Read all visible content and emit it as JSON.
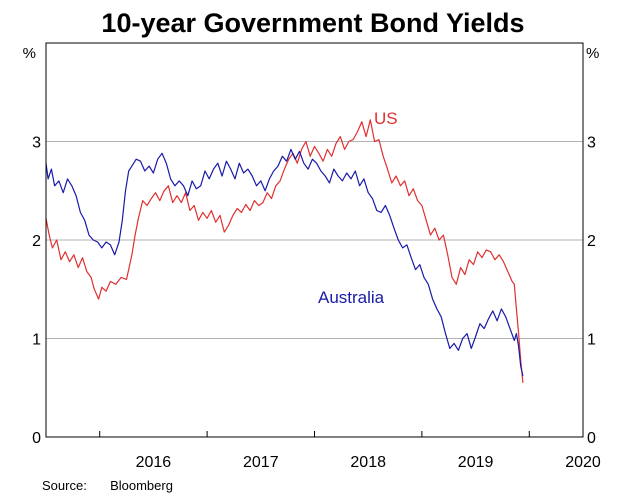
{
  "chart_data": {
    "type": "line",
    "title": "10-year Government Bond Yields",
    "ylabel_left": "%",
    "ylabel_right": "%",
    "ylim": [
      0,
      4
    ],
    "yticks": [
      0,
      1,
      2,
      3
    ],
    "xlim": [
      2015.5,
      2020.5
    ],
    "xticks": [
      "2016",
      "2017",
      "2018",
      "2019",
      "2020"
    ],
    "year_boundaries": [
      2016,
      2017,
      2018,
      2019,
      2020
    ],
    "grid": true,
    "colors": {
      "US": "#e03030",
      "Australia": "#1a1aa8",
      "grid": "#b3b3b3"
    },
    "series": [
      {
        "name": "US",
        "label": "US",
        "points": [
          [
            2015.5,
            2.22
          ],
          [
            2015.53,
            2.05
          ],
          [
            2015.56,
            1.92
          ],
          [
            2015.6,
            2.0
          ],
          [
            2015.64,
            1.8
          ],
          [
            2015.68,
            1.88
          ],
          [
            2015.72,
            1.78
          ],
          [
            2015.76,
            1.85
          ],
          [
            2015.8,
            1.72
          ],
          [
            2015.84,
            1.82
          ],
          [
            2015.88,
            1.68
          ],
          [
            2015.92,
            1.62
          ],
          [
            2015.95,
            1.5
          ],
          [
            2015.97,
            1.45
          ],
          [
            2015.99,
            1.4
          ],
          [
            2016.02,
            1.52
          ],
          [
            2016.06,
            1.48
          ],
          [
            2016.1,
            1.58
          ],
          [
            2016.15,
            1.55
          ],
          [
            2016.2,
            1.62
          ],
          [
            2016.25,
            1.6
          ],
          [
            2016.3,
            1.85
          ],
          [
            2016.33,
            2.05
          ],
          [
            2016.36,
            2.22
          ],
          [
            2016.4,
            2.4
          ],
          [
            2016.44,
            2.35
          ],
          [
            2016.48,
            2.42
          ],
          [
            2016.52,
            2.48
          ],
          [
            2016.56,
            2.4
          ],
          [
            2016.6,
            2.5
          ],
          [
            2016.64,
            2.55
          ],
          [
            2016.68,
            2.38
          ],
          [
            2016.72,
            2.45
          ],
          [
            2016.76,
            2.38
          ],
          [
            2016.8,
            2.48
          ],
          [
            2016.84,
            2.3
          ],
          [
            2016.88,
            2.35
          ],
          [
            2016.92,
            2.2
          ],
          [
            2016.96,
            2.28
          ],
          [
            2017.0,
            2.22
          ],
          [
            2017.04,
            2.3
          ],
          [
            2017.08,
            2.18
          ],
          [
            2017.12,
            2.25
          ],
          [
            2017.16,
            2.08
          ],
          [
            2017.2,
            2.15
          ],
          [
            2017.24,
            2.25
          ],
          [
            2017.28,
            2.32
          ],
          [
            2017.32,
            2.28
          ],
          [
            2017.36,
            2.36
          ],
          [
            2017.4,
            2.3
          ],
          [
            2017.44,
            2.4
          ],
          [
            2017.48,
            2.35
          ],
          [
            2017.52,
            2.38
          ],
          [
            2017.56,
            2.48
          ],
          [
            2017.6,
            2.42
          ],
          [
            2017.64,
            2.55
          ],
          [
            2017.68,
            2.6
          ],
          [
            2017.72,
            2.72
          ],
          [
            2017.76,
            2.82
          ],
          [
            2017.8,
            2.88
          ],
          [
            2017.84,
            2.78
          ],
          [
            2017.88,
            2.92
          ],
          [
            2017.92,
            3.0
          ],
          [
            2017.96,
            2.85
          ],
          [
            2018.0,
            2.95
          ],
          [
            2018.04,
            2.88
          ],
          [
            2018.08,
            2.8
          ],
          [
            2018.12,
            2.92
          ],
          [
            2018.16,
            2.85
          ],
          [
            2018.2,
            2.98
          ],
          [
            2018.24,
            3.05
          ],
          [
            2018.28,
            2.92
          ],
          [
            2018.32,
            3.0
          ],
          [
            2018.36,
            3.02
          ],
          [
            2018.4,
            3.1
          ],
          [
            2018.44,
            3.2
          ],
          [
            2018.48,
            3.05
          ],
          [
            2018.52,
            3.22
          ],
          [
            2018.56,
            3.0
          ],
          [
            2018.6,
            3.02
          ],
          [
            2018.64,
            2.85
          ],
          [
            2018.68,
            2.72
          ],
          [
            2018.72,
            2.58
          ],
          [
            2018.76,
            2.65
          ],
          [
            2018.8,
            2.55
          ],
          [
            2018.84,
            2.6
          ],
          [
            2018.88,
            2.45
          ],
          [
            2018.92,
            2.52
          ],
          [
            2018.96,
            2.4
          ],
          [
            2019.0,
            2.35
          ],
          [
            2019.04,
            2.2
          ],
          [
            2019.08,
            2.05
          ],
          [
            2019.12,
            2.12
          ],
          [
            2019.16,
            2.0
          ],
          [
            2019.2,
            2.05
          ],
          [
            2019.24,
            1.85
          ],
          [
            2019.28,
            1.62
          ],
          [
            2019.32,
            1.55
          ],
          [
            2019.36,
            1.72
          ],
          [
            2019.4,
            1.65
          ],
          [
            2019.44,
            1.8
          ],
          [
            2019.48,
            1.75
          ],
          [
            2019.52,
            1.88
          ],
          [
            2019.56,
            1.82
          ],
          [
            2019.6,
            1.9
          ],
          [
            2019.64,
            1.88
          ],
          [
            2019.68,
            1.8
          ],
          [
            2019.72,
            1.85
          ],
          [
            2019.76,
            1.78
          ],
          [
            2019.8,
            1.68
          ],
          [
            2019.84,
            1.58
          ],
          [
            2019.86,
            1.55
          ],
          [
            2019.88,
            1.3
          ],
          [
            2019.9,
            1.05
          ],
          [
            2019.92,
            0.78
          ],
          [
            2019.94,
            0.55
          ]
        ]
      },
      {
        "name": "Australia",
        "label": "Australia",
        "points": [
          [
            2015.5,
            2.78
          ],
          [
            2015.52,
            2.62
          ],
          [
            2015.55,
            2.72
          ],
          [
            2015.58,
            2.55
          ],
          [
            2015.62,
            2.6
          ],
          [
            2015.66,
            2.48
          ],
          [
            2015.7,
            2.62
          ],
          [
            2015.74,
            2.55
          ],
          [
            2015.78,
            2.45
          ],
          [
            2015.82,
            2.28
          ],
          [
            2015.86,
            2.2
          ],
          [
            2015.9,
            2.05
          ],
          [
            2015.94,
            2.0
          ],
          [
            2015.98,
            1.98
          ],
          [
            2016.02,
            1.92
          ],
          [
            2016.06,
            1.98
          ],
          [
            2016.1,
            1.95
          ],
          [
            2016.14,
            1.85
          ],
          [
            2016.18,
            1.98
          ],
          [
            2016.21,
            2.2
          ],
          [
            2016.24,
            2.5
          ],
          [
            2016.27,
            2.7
          ],
          [
            2016.3,
            2.75
          ],
          [
            2016.34,
            2.82
          ],
          [
            2016.38,
            2.8
          ],
          [
            2016.42,
            2.7
          ],
          [
            2016.46,
            2.75
          ],
          [
            2016.5,
            2.68
          ],
          [
            2016.54,
            2.82
          ],
          [
            2016.58,
            2.88
          ],
          [
            2016.62,
            2.78
          ],
          [
            2016.66,
            2.62
          ],
          [
            2016.7,
            2.55
          ],
          [
            2016.74,
            2.6
          ],
          [
            2016.78,
            2.55
          ],
          [
            2016.82,
            2.45
          ],
          [
            2016.86,
            2.6
          ],
          [
            2016.9,
            2.52
          ],
          [
            2016.94,
            2.55
          ],
          [
            2016.98,
            2.7
          ],
          [
            2017.02,
            2.62
          ],
          [
            2017.06,
            2.72
          ],
          [
            2017.1,
            2.78
          ],
          [
            2017.14,
            2.65
          ],
          [
            2017.18,
            2.8
          ],
          [
            2017.22,
            2.72
          ],
          [
            2017.26,
            2.62
          ],
          [
            2017.3,
            2.78
          ],
          [
            2017.34,
            2.68
          ],
          [
            2017.38,
            2.72
          ],
          [
            2017.42,
            2.65
          ],
          [
            2017.46,
            2.55
          ],
          [
            2017.5,
            2.6
          ],
          [
            2017.54,
            2.5
          ],
          [
            2017.58,
            2.62
          ],
          [
            2017.62,
            2.7
          ],
          [
            2017.66,
            2.75
          ],
          [
            2017.7,
            2.85
          ],
          [
            2017.74,
            2.8
          ],
          [
            2017.78,
            2.92
          ],
          [
            2017.82,
            2.82
          ],
          [
            2017.86,
            2.9
          ],
          [
            2017.9,
            2.78
          ],
          [
            2017.94,
            2.72
          ],
          [
            2017.98,
            2.82
          ],
          [
            2018.02,
            2.78
          ],
          [
            2018.06,
            2.7
          ],
          [
            2018.1,
            2.65
          ],
          [
            2018.14,
            2.58
          ],
          [
            2018.18,
            2.72
          ],
          [
            2018.22,
            2.65
          ],
          [
            2018.26,
            2.6
          ],
          [
            2018.3,
            2.68
          ],
          [
            2018.34,
            2.62
          ],
          [
            2018.38,
            2.7
          ],
          [
            2018.42,
            2.55
          ],
          [
            2018.46,
            2.62
          ],
          [
            2018.5,
            2.48
          ],
          [
            2018.54,
            2.42
          ],
          [
            2018.58,
            2.3
          ],
          [
            2018.62,
            2.28
          ],
          [
            2018.66,
            2.35
          ],
          [
            2018.7,
            2.25
          ],
          [
            2018.74,
            2.12
          ],
          [
            2018.78,
            2.0
          ],
          [
            2018.82,
            1.92
          ],
          [
            2018.86,
            1.95
          ],
          [
            2018.9,
            1.82
          ],
          [
            2018.94,
            1.7
          ],
          [
            2018.98,
            1.75
          ],
          [
            2019.02,
            1.62
          ],
          [
            2019.06,
            1.55
          ],
          [
            2019.1,
            1.4
          ],
          [
            2019.14,
            1.3
          ],
          [
            2019.18,
            1.22
          ],
          [
            2019.22,
            1.05
          ],
          [
            2019.26,
            0.9
          ],
          [
            2019.3,
            0.95
          ],
          [
            2019.34,
            0.88
          ],
          [
            2019.38,
            1.0
          ],
          [
            2019.42,
            1.05
          ],
          [
            2019.46,
            0.9
          ],
          [
            2019.5,
            1.02
          ],
          [
            2019.54,
            1.15
          ],
          [
            2019.58,
            1.1
          ],
          [
            2019.62,
            1.2
          ],
          [
            2019.66,
            1.28
          ],
          [
            2019.7,
            1.18
          ],
          [
            2019.74,
            1.3
          ],
          [
            2019.78,
            1.22
          ],
          [
            2019.82,
            1.1
          ],
          [
            2019.86,
            0.98
          ],
          [
            2019.88,
            1.05
          ],
          [
            2019.9,
            0.92
          ],
          [
            2019.92,
            0.72
          ],
          [
            2019.94,
            0.62
          ]
        ]
      }
    ]
  },
  "source": {
    "label": "Source:",
    "value": "Bloomberg"
  }
}
